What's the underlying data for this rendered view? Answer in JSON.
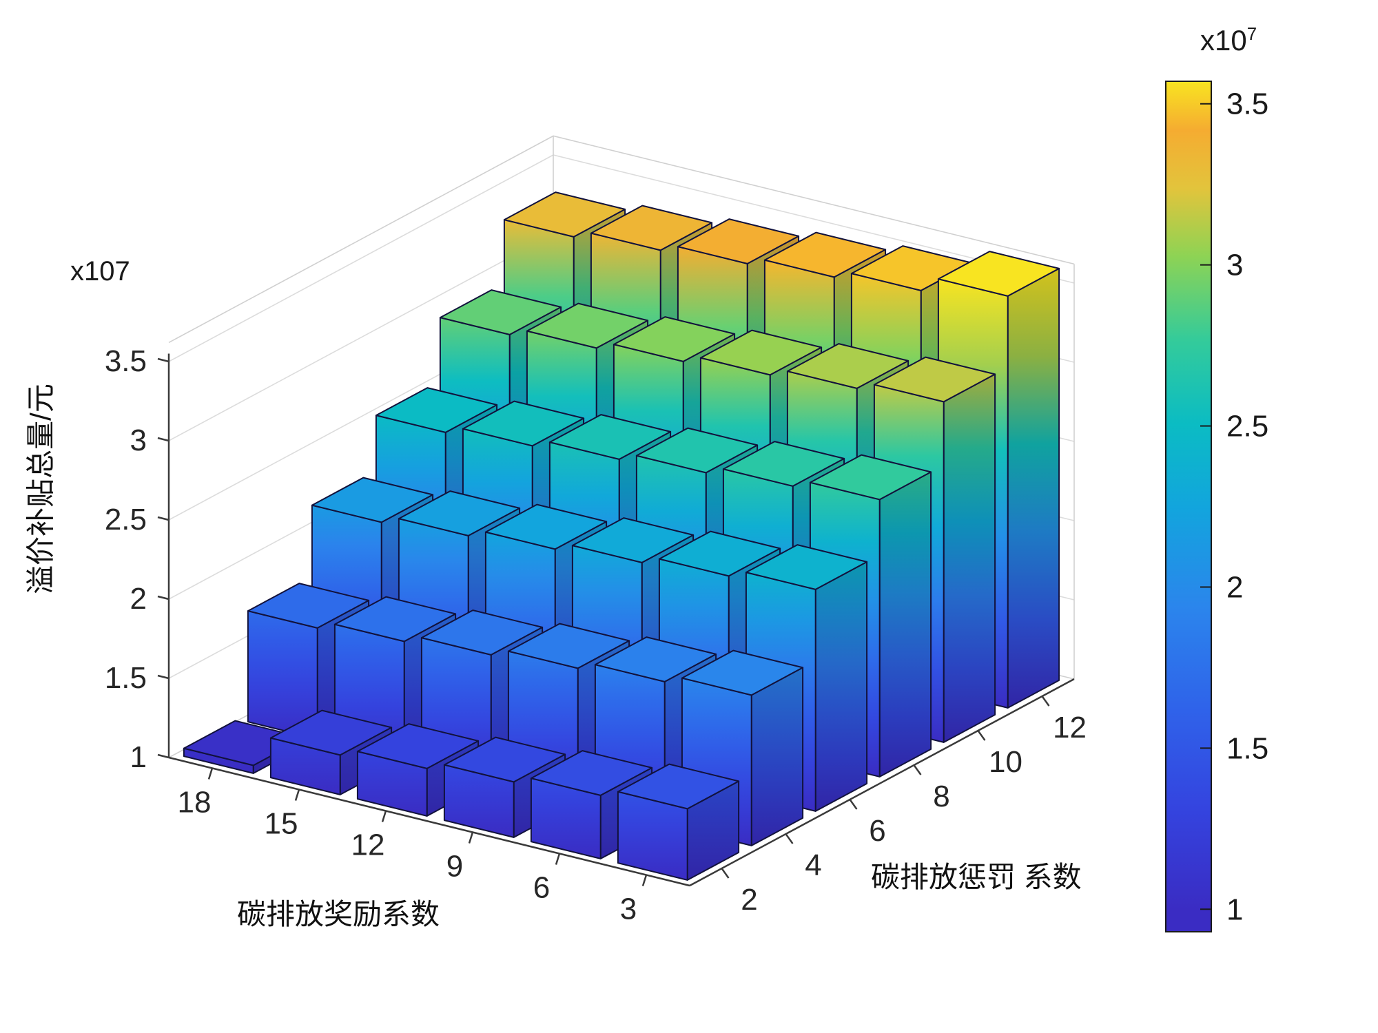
{
  "figure": {
    "background": "#ffffff"
  },
  "chart_data": {
    "type": "bar",
    "subtype": "bar3d",
    "title": "",
    "value_unit_note": "x107",
    "color_domain": [
      1,
      3.6
    ],
    "x_axis": {
      "label": "碳排放奖励系数",
      "ticks": [
        18,
        15,
        12,
        9,
        6,
        3
      ]
    },
    "y_axis": {
      "label": "碳排放惩罚 系数",
      "ticks": [
        2,
        4,
        6,
        8,
        10,
        12
      ]
    },
    "z_axis": {
      "label": "溢价补贴总量/元",
      "scale_label": "x107",
      "ticks": [
        1,
        1.5,
        2,
        2.5,
        3,
        3.5
      ],
      "lim": [
        1,
        3.62
      ]
    },
    "series": [
      {
        "penalty": 2,
        "values": [
          1.05,
          1.25,
          1.3,
          1.35,
          1.4,
          1.45
        ]
      },
      {
        "penalty": 4,
        "values": [
          1.7,
          1.75,
          1.8,
          1.85,
          1.9,
          1.95
        ]
      },
      {
        "penalty": 6,
        "values": [
          2.15,
          2.2,
          2.25,
          2.3,
          2.35,
          2.4
        ]
      },
      {
        "penalty": 8,
        "values": [
          2.5,
          2.55,
          2.6,
          2.65,
          2.7,
          2.75
        ]
      },
      {
        "penalty": 10,
        "values": [
          2.9,
          2.95,
          3.0,
          3.05,
          3.1,
          3.15
        ]
      },
      {
        "penalty": 12,
        "values": [
          3.3,
          3.35,
          3.4,
          3.45,
          3.5,
          3.6
        ]
      }
    ],
    "series_value_order_note": "values ordered by reward coefficient 18,15,12,9,6,3; heights in units of 1e7 yuan",
    "colorbar": {
      "scale_base": "x10",
      "scale_exp": "7",
      "ticks": [
        1,
        1.5,
        2,
        2.5,
        3,
        3.5
      ],
      "lim": [
        0.93,
        3.57
      ]
    },
    "colormap": [
      {
        "t": 0.0,
        "c": "#3a2cc3"
      },
      {
        "t": 0.12,
        "c": "#3444df"
      },
      {
        "t": 0.24,
        "c": "#2f63ea"
      },
      {
        "t": 0.36,
        "c": "#2b85ec"
      },
      {
        "t": 0.48,
        "c": "#12a5dd"
      },
      {
        "t": 0.58,
        "c": "#0bbcc3"
      },
      {
        "t": 0.68,
        "c": "#34cb9a"
      },
      {
        "t": 0.78,
        "c": "#8ed354"
      },
      {
        "t": 0.86,
        "c": "#e2c43c"
      },
      {
        "t": 0.93,
        "c": "#f5ac31"
      },
      {
        "t": 1.0,
        "c": "#f8e421"
      }
    ]
  }
}
